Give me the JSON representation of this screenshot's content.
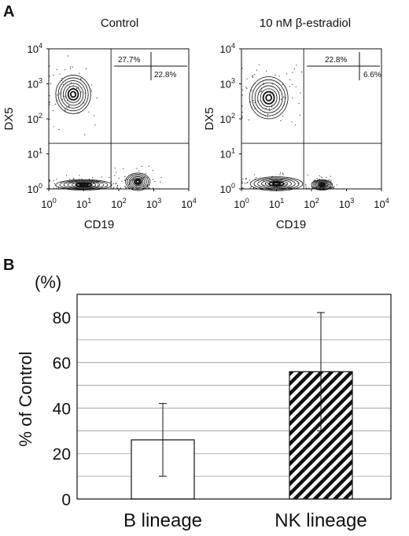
{
  "figure": {
    "panel_a_label": "A",
    "panel_b_label": "B"
  },
  "chart_data": [
    {
      "type": "scatter",
      "subtype": "flow-cytometry-contour",
      "title": "Control",
      "xlabel": "CD19",
      "ylabel": "DX5",
      "x_scale": "log",
      "y_scale": "log",
      "xlim": [
        1,
        10000
      ],
      "ylim": [
        1,
        10000
      ],
      "x_ticks": [
        {
          "base": "10",
          "exp": "0"
        },
        {
          "base": "10",
          "exp": "1"
        },
        {
          "base": "10",
          "exp": "2"
        },
        {
          "base": "10",
          "exp": "3"
        },
        {
          "base": "10",
          "exp": "4"
        }
      ],
      "y_ticks": [
        {
          "base": "10",
          "exp": "0"
        },
        {
          "base": "10",
          "exp": "1"
        },
        {
          "base": "10",
          "exp": "2"
        },
        {
          "base": "10",
          "exp": "3"
        },
        {
          "base": "10",
          "exp": "4"
        }
      ],
      "gate_x": 60,
      "gate_y": 20,
      "annotations": [
        "27.7%",
        "22.8%"
      ],
      "populations": [
        {
          "x": 5,
          "y": 500,
          "spread_x": 0.5,
          "spread_y": 0.55
        },
        {
          "x": 10,
          "y": 1.3,
          "spread_x": 0.8,
          "spread_y": 0.15
        },
        {
          "x": 350,
          "y": 1.6,
          "spread_x": 0.35,
          "spread_y": 0.25
        }
      ]
    },
    {
      "type": "scatter",
      "subtype": "flow-cytometry-contour",
      "title": "10 nM β-estradiol",
      "xlabel": "CD19",
      "ylabel": "DX5",
      "x_scale": "log",
      "y_scale": "log",
      "xlim": [
        1,
        10000
      ],
      "ylim": [
        1,
        10000
      ],
      "x_ticks": [
        {
          "base": "10",
          "exp": "0"
        },
        {
          "base": "10",
          "exp": "1"
        },
        {
          "base": "10",
          "exp": "2"
        },
        {
          "base": "10",
          "exp": "3"
        },
        {
          "base": "10",
          "exp": "4"
        }
      ],
      "y_ticks": [
        {
          "base": "10",
          "exp": "0"
        },
        {
          "base": "10",
          "exp": "1"
        },
        {
          "base": "10",
          "exp": "2"
        },
        {
          "base": "10",
          "exp": "3"
        },
        {
          "base": "10",
          "exp": "4"
        }
      ],
      "gate_x": 60,
      "gate_y": 20,
      "annotations": [
        "22.8%",
        "6.6%"
      ],
      "populations": [
        {
          "x": 6,
          "y": 400,
          "spread_x": 0.55,
          "spread_y": 0.6
        },
        {
          "x": 10,
          "y": 1.4,
          "spread_x": 0.75,
          "spread_y": 0.2
        },
        {
          "x": 200,
          "y": 1.3,
          "spread_x": 0.3,
          "spread_y": 0.15
        }
      ]
    },
    {
      "type": "bar",
      "categories": [
        "B lineage",
        "NK lineage"
      ],
      "values": [
        26,
        56
      ],
      "errors": [
        16,
        26
      ],
      "fills": [
        "white",
        "hatched"
      ],
      "ylabel": "% of Control",
      "unit_label": "(%)",
      "ylim": [
        0,
        90
      ],
      "y_ticks": [
        "0",
        "20",
        "40",
        "60",
        "80"
      ],
      "grid": true
    }
  ]
}
